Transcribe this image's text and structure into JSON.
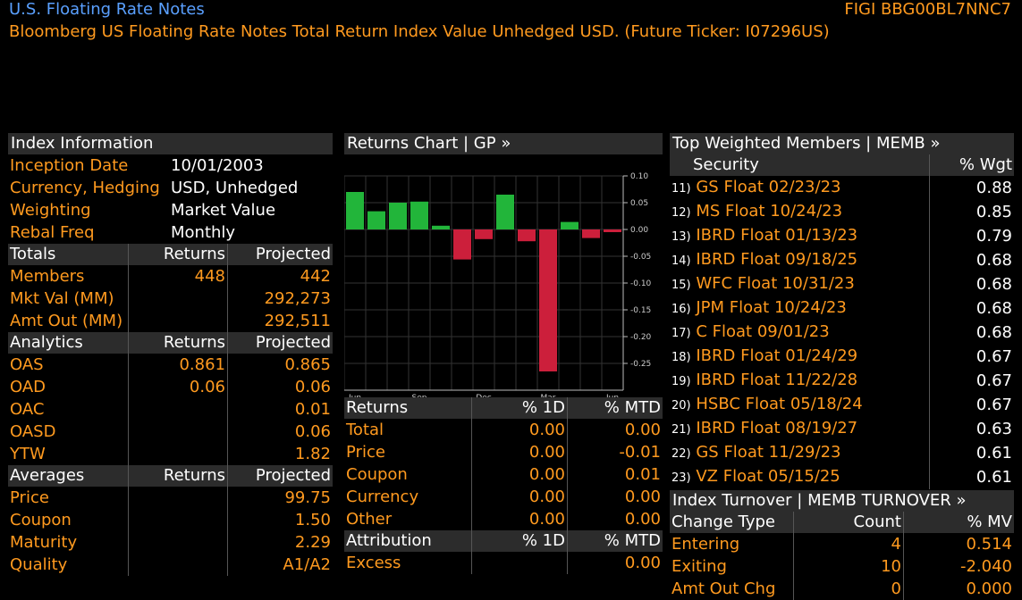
{
  "header": {
    "title": "U.S. Floating Rate Notes",
    "figi": "FIGI BBG00BL7NNC7",
    "subtitle": "Bloomberg US Floating Rate Notes Total Return Index Value Unhedged USD. (Future Ticker: I07296US)"
  },
  "index_info": {
    "title": "Index Information",
    "rows": [
      {
        "label": "Inception Date",
        "value": "10/01/2003"
      },
      {
        "label": "Currency, Hedging",
        "value": "USD, Unhedged"
      },
      {
        "label": "Weighting",
        "value": "Market Value"
      },
      {
        "label": "Rebal Freq",
        "value": "Monthly"
      }
    ]
  },
  "totals": {
    "headers": [
      "Totals",
      "Returns",
      "Projected"
    ],
    "rows": [
      {
        "label": "Members",
        "returns": "448",
        "projected": "442"
      },
      {
        "label": "Mkt Val (MM)",
        "returns": "",
        "projected": "292,273"
      },
      {
        "label": "Amt Out (MM)",
        "returns": "",
        "projected": "292,511"
      }
    ]
  },
  "analytics": {
    "headers": [
      "Analytics",
      "Returns",
      "Projected"
    ],
    "rows": [
      {
        "label": "OAS",
        "returns": "0.861",
        "projected": "0.865"
      },
      {
        "label": "OAD",
        "returns": "0.06",
        "projected": "0.06"
      },
      {
        "label": "OAC",
        "returns": "",
        "projected": "0.01"
      },
      {
        "label": "OASD",
        "returns": "",
        "projected": "0.06"
      },
      {
        "label": "YTW",
        "returns": "",
        "projected": "1.82"
      }
    ]
  },
  "averages": {
    "headers": [
      "Averages",
      "Returns",
      "Projected"
    ],
    "rows": [
      {
        "label": "Price",
        "returns": "",
        "projected": "99.75"
      },
      {
        "label": "Coupon",
        "returns": "",
        "projected": "1.50"
      },
      {
        "label": "Maturity",
        "returns": "",
        "projected": "2.29"
      },
      {
        "label": "Quality",
        "returns": "",
        "projected": "A1/A2"
      }
    ]
  },
  "returns_chart": {
    "title": "Returns Chart | GP »"
  },
  "chart_data": {
    "type": "bar",
    "categories": [
      "Jun 2021",
      "Jul 2021",
      "Aug 2021",
      "Sep 2021",
      "Oct 2021",
      "Nov 2021",
      "Dec 2021",
      "Jan 2022",
      "Feb 2022",
      "Mar 2022",
      "Apr 2022",
      "May 2022",
      "Jun 2022"
    ],
    "values": [
      0.07,
      0.034,
      0.05,
      0.052,
      0.007,
      -0.056,
      -0.018,
      0.065,
      -0.022,
      -0.265,
      0.014,
      -0.016,
      -0.005
    ],
    "colors": {
      "positive": "#22b53a",
      "negative": "#cc1f3b"
    },
    "ylim": [
      -0.3,
      0.1
    ],
    "yticks": [
      "0.10",
      "0.05",
      "0.00",
      "-0.05",
      "-0.10",
      "-0.15",
      "-0.20",
      "-0.25"
    ],
    "xticks": [
      {
        "label": "Jun",
        "year": ""
      },
      {
        "label": "Sep",
        "year": "2021"
      },
      {
        "label": "Dec",
        "year": ""
      },
      {
        "label": "Mar",
        "year": "2022"
      },
      {
        "label": "Jun",
        "year": ""
      }
    ],
    "grid": true
  },
  "returns_table": {
    "headers": [
      "Returns",
      "% 1D",
      "% MTD"
    ],
    "rows": [
      {
        "label": "Total",
        "d1": "0.00",
        "mtd": "0.00"
      },
      {
        "label": "Price",
        "d1": "0.00",
        "mtd": "-0.01"
      },
      {
        "label": "Coupon",
        "d1": "0.00",
        "mtd": "0.01"
      },
      {
        "label": "Currency",
        "d1": "0.00",
        "mtd": "0.00"
      },
      {
        "label": "Other",
        "d1": "0.00",
        "mtd": "0.00"
      }
    ]
  },
  "attribution": {
    "headers": [
      "Attribution",
      "% 1D",
      "% MTD"
    ],
    "rows": [
      {
        "label": "Excess",
        "d1": "",
        "mtd": "0.00"
      }
    ]
  },
  "top_members": {
    "title": "Top Weighted Members | MEMB »",
    "headers": [
      "Security",
      "% Wgt"
    ],
    "rows": [
      {
        "idx": "11)",
        "security": "GS Float 02/23/23",
        "wgt": "0.88"
      },
      {
        "idx": "12)",
        "security": "MS Float 10/24/23",
        "wgt": "0.85"
      },
      {
        "idx": "13)",
        "security": "IBRD Float 01/13/23",
        "wgt": "0.79"
      },
      {
        "idx": "14)",
        "security": "IBRD Float 09/18/25",
        "wgt": "0.68"
      },
      {
        "idx": "15)",
        "security": "WFC Float 10/31/23",
        "wgt": "0.68"
      },
      {
        "idx": "16)",
        "security": "JPM Float 10/24/23",
        "wgt": "0.68"
      },
      {
        "idx": "17)",
        "security": "C Float 09/01/23",
        "wgt": "0.68"
      },
      {
        "idx": "18)",
        "security": "IBRD Float 01/24/29",
        "wgt": "0.67"
      },
      {
        "idx": "19)",
        "security": "IBRD Float 11/22/28",
        "wgt": "0.67"
      },
      {
        "idx": "20)",
        "security": "HSBC Float 05/18/24",
        "wgt": "0.67"
      },
      {
        "idx": "21)",
        "security": "IBRD Float 08/19/27",
        "wgt": "0.63"
      },
      {
        "idx": "22)",
        "security": "GS Float 11/29/23",
        "wgt": "0.61"
      },
      {
        "idx": "23)",
        "security": "VZ Float 05/15/25",
        "wgt": "0.61"
      }
    ]
  },
  "turnover": {
    "title": "Index Turnover | MEMB TURNOVER »",
    "headers": [
      "Change Type",
      "Count",
      "% MV"
    ],
    "rows": [
      {
        "label": "Entering",
        "count": "4",
        "mv": "0.514"
      },
      {
        "label": "Exiting",
        "count": "10",
        "mv": "-2.040"
      },
      {
        "label": "Amt Out Chg",
        "count": "0",
        "mv": "0.000"
      }
    ]
  }
}
